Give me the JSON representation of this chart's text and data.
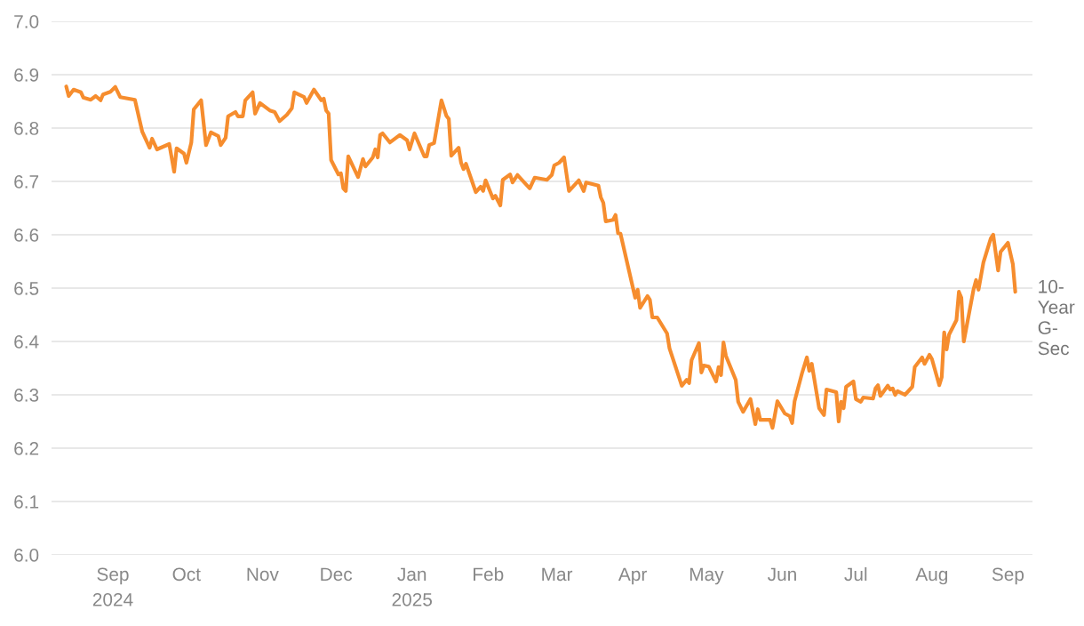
{
  "chart_data": {
    "type": "line",
    "x": [
      "2024-08-13",
      "2024-08-14",
      "2024-08-16",
      "2024-08-19",
      "2024-08-20",
      "2024-08-23",
      "2024-08-25",
      "2024-08-27",
      "2024-08-28",
      "2024-08-31",
      "2024-09-02",
      "2024-09-04",
      "2024-09-10",
      "2024-09-13",
      "2024-09-16",
      "2024-09-17",
      "2024-09-19",
      "2024-09-24",
      "2024-09-26",
      "2024-09-27",
      "2024-09-30",
      "2024-10-01",
      "2024-10-03",
      "2024-10-04",
      "2024-10-07",
      "2024-10-09",
      "2024-10-11",
      "2024-10-14",
      "2024-10-15",
      "2024-10-17",
      "2024-10-18",
      "2024-10-21",
      "2024-10-22",
      "2024-10-24",
      "2024-10-25",
      "2024-10-28",
      "2024-10-29",
      "2024-10-31",
      "2024-11-04",
      "2024-11-06",
      "2024-11-08",
      "2024-11-11",
      "2024-11-13",
      "2024-11-14",
      "2024-11-18",
      "2024-11-19",
      "2024-11-22",
      "2024-11-25",
      "2024-11-26",
      "2024-11-27",
      "2024-11-28",
      "2024-11-29",
      "2024-12-02",
      "2024-12-03",
      "2024-12-04",
      "2024-12-05",
      "2024-12-06",
      "2024-12-10",
      "2024-12-12",
      "2024-12-13",
      "2024-12-16",
      "2024-12-17",
      "2024-12-18",
      "2024-12-19",
      "2024-12-20",
      "2024-12-23",
      "2024-12-27",
      "2024-12-30",
      "2024-12-31",
      "2025-01-02",
      "2025-01-06",
      "2025-01-07",
      "2025-01-08",
      "2025-01-10",
      "2025-01-13",
      "2025-01-15",
      "2025-01-16",
      "2025-01-17",
      "2025-01-20",
      "2025-01-21",
      "2025-01-22",
      "2025-01-23",
      "2025-01-27",
      "2025-01-29",
      "2025-01-30",
      "2025-01-31",
      "2025-02-03",
      "2025-02-04",
      "2025-02-06",
      "2025-02-07",
      "2025-02-10",
      "2025-02-11",
      "2025-02-13",
      "2025-02-18",
      "2025-02-20",
      "2025-02-25",
      "2025-02-27",
      "2025-02-28",
      "2025-03-02",
      "2025-03-04",
      "2025-03-06",
      "2025-03-10",
      "2025-03-12",
      "2025-03-13",
      "2025-03-18",
      "2025-03-19",
      "2025-03-20",
      "2025-03-21",
      "2025-03-24",
      "2025-03-25",
      "2025-03-26",
      "2025-03-27",
      "2025-04-02",
      "2025-04-03",
      "2025-04-04",
      "2025-04-07",
      "2025-04-08",
      "2025-04-09",
      "2025-04-11",
      "2025-04-15",
      "2025-04-16",
      "2025-04-21",
      "2025-04-23",
      "2025-04-24",
      "2025-04-25",
      "2025-04-28",
      "2025-04-29",
      "2025-04-30",
      "2025-05-02",
      "2025-05-05",
      "2025-05-06",
      "2025-05-07",
      "2025-05-08",
      "2025-05-09",
      "2025-05-13",
      "2025-05-14",
      "2025-05-16",
      "2025-05-19",
      "2025-05-21",
      "2025-05-22",
      "2025-05-23",
      "2025-05-27",
      "2025-05-28",
      "2025-05-30",
      "2025-06-02",
      "2025-06-04",
      "2025-06-05",
      "2025-06-06",
      "2025-06-09",
      "2025-06-11",
      "2025-06-12",
      "2025-06-13",
      "2025-06-16",
      "2025-06-18",
      "2025-06-19",
      "2025-06-23",
      "2025-06-24",
      "2025-06-25",
      "2025-06-26",
      "2025-06-27",
      "2025-06-30",
      "2025-07-01",
      "2025-07-03",
      "2025-07-04",
      "2025-07-08",
      "2025-07-09",
      "2025-07-10",
      "2025-07-11",
      "2025-07-14",
      "2025-07-15",
      "2025-07-16",
      "2025-07-17",
      "2025-07-18",
      "2025-07-21",
      "2025-07-24",
      "2025-07-25",
      "2025-07-28",
      "2025-07-29",
      "2025-07-31",
      "2025-08-01",
      "2025-08-04",
      "2025-08-05",
      "2025-08-06",
      "2025-08-07",
      "2025-08-08",
      "2025-08-11",
      "2025-08-12",
      "2025-08-13",
      "2025-08-14",
      "2025-08-18",
      "2025-08-19",
      "2025-08-20",
      "2025-08-22",
      "2025-08-25",
      "2025-08-26",
      "2025-08-28",
      "2025-08-29",
      "2025-09-01",
      "2025-09-03",
      "2025-09-04"
    ],
    "series": [
      {
        "name": "10-Year G-Sec",
        "color": "#f68d2e",
        "values": [
          6.878,
          6.86,
          6.872,
          6.867,
          6.857,
          6.853,
          6.86,
          6.852,
          6.863,
          6.868,
          6.877,
          6.858,
          6.853,
          6.793,
          6.763,
          6.78,
          6.76,
          6.77,
          6.718,
          6.762,
          6.752,
          6.735,
          6.773,
          6.835,
          6.852,
          6.768,
          6.792,
          6.785,
          6.768,
          6.782,
          6.822,
          6.83,
          6.822,
          6.822,
          6.852,
          6.867,
          6.827,
          6.847,
          6.833,
          6.83,
          6.813,
          6.825,
          6.837,
          6.867,
          6.858,
          6.847,
          6.872,
          6.852,
          6.855,
          6.833,
          6.827,
          6.74,
          6.713,
          6.715,
          6.687,
          6.682,
          6.747,
          6.708,
          6.742,
          6.728,
          6.745,
          6.76,
          6.745,
          6.787,
          6.79,
          6.773,
          6.787,
          6.777,
          6.76,
          6.79,
          6.747,
          6.747,
          6.768,
          6.772,
          6.852,
          6.823,
          6.817,
          6.748,
          6.763,
          6.735,
          6.723,
          6.733,
          6.68,
          6.69,
          6.682,
          6.702,
          6.668,
          6.673,
          6.655,
          6.703,
          6.713,
          6.698,
          6.712,
          6.687,
          6.707,
          6.703,
          6.712,
          6.73,
          6.735,
          6.745,
          6.682,
          6.702,
          6.682,
          6.698,
          6.692,
          6.67,
          6.66,
          6.625,
          6.628,
          6.637,
          6.603,
          6.602,
          6.482,
          6.497,
          6.463,
          6.485,
          6.478,
          6.445,
          6.445,
          6.415,
          6.387,
          6.317,
          6.328,
          6.322,
          6.365,
          6.397,
          6.342,
          6.355,
          6.353,
          6.325,
          6.352,
          6.337,
          6.398,
          6.373,
          6.328,
          6.287,
          6.268,
          6.292,
          6.245,
          6.273,
          6.253,
          6.253,
          6.238,
          6.288,
          6.265,
          6.26,
          6.247,
          6.288,
          6.34,
          6.37,
          6.345,
          6.358,
          6.275,
          6.262,
          6.31,
          6.305,
          6.25,
          6.287,
          6.275,
          6.315,
          6.325,
          6.292,
          6.287,
          6.295,
          6.293,
          6.312,
          6.318,
          6.298,
          6.317,
          6.31,
          6.312,
          6.3,
          6.307,
          6.3,
          6.315,
          6.352,
          6.37,
          6.358,
          6.375,
          6.367,
          6.318,
          6.333,
          6.417,
          6.385,
          6.413,
          6.44,
          6.493,
          6.482,
          6.4,
          6.498,
          6.515,
          6.497,
          6.548,
          6.593,
          6.6,
          6.533,
          6.568,
          6.585,
          6.545,
          6.493
        ]
      }
    ],
    "xlim": [
      "2024-08-07",
      "2025-09-11"
    ],
    "xticks": [
      {
        "value": "2024-09-01",
        "label": "Sep\n2024"
      },
      {
        "value": "2024-10-01",
        "label": "Oct"
      },
      {
        "value": "2024-11-01",
        "label": "Nov"
      },
      {
        "value": "2024-12-01",
        "label": "Dec"
      },
      {
        "value": "2025-01-01",
        "label": "Jan\n2025"
      },
      {
        "value": "2025-02-01",
        "label": "Feb"
      },
      {
        "value": "2025-03-01",
        "label": "Mar"
      },
      {
        "value": "2025-04-01",
        "label": "Apr"
      },
      {
        "value": "2025-05-01",
        "label": "May"
      },
      {
        "value": "2025-06-01",
        "label": "Jun"
      },
      {
        "value": "2025-07-01",
        "label": "Jul"
      },
      {
        "value": "2025-08-01",
        "label": "Aug"
      },
      {
        "value": "2025-09-01",
        "label": "Sep"
      }
    ],
    "ylim": [
      6.0,
      7.0
    ],
    "yticks": [
      {
        "value": 6.0,
        "label": "6.0"
      },
      {
        "value": 6.1,
        "label": "6.1"
      },
      {
        "value": 6.2,
        "label": "6.2"
      },
      {
        "value": 6.3,
        "label": "6.3"
      },
      {
        "value": 6.4,
        "label": "6.4"
      },
      {
        "value": 6.5,
        "label": "6.5"
      },
      {
        "value": 6.6,
        "label": "6.6"
      },
      {
        "value": 6.7,
        "label": "6.7"
      },
      {
        "value": 6.8,
        "label": "6.8"
      },
      {
        "value": 6.9,
        "label": "6.9"
      },
      {
        "value": 7.0,
        "label": "7.0"
      }
    ],
    "grid": "y",
    "line_style": "solid"
  }
}
